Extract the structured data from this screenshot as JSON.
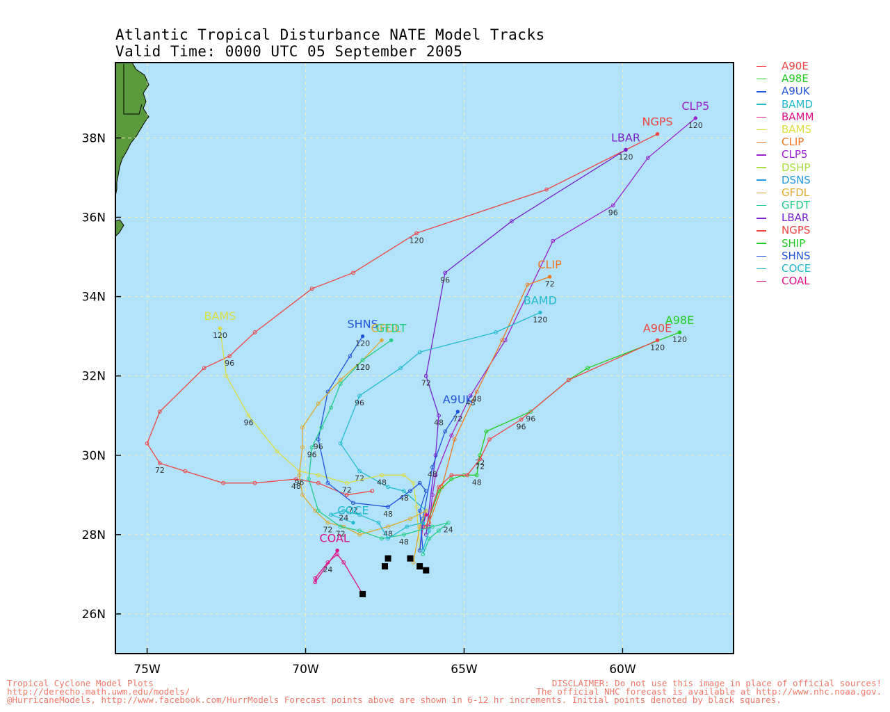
{
  "title": {
    "line1": "Atlantic Tropical Disturbance NATE Model Tracks",
    "line2": "Valid Time: 0000 UTC 05 September 2005"
  },
  "map": {
    "lon_range": [
      -76,
      -56.5
    ],
    "lat_range": [
      25,
      39.9
    ],
    "lon_ticks": [
      -75,
      -70,
      -65,
      -60
    ],
    "lon_tick_labels": [
      "75W",
      "70W",
      "65W",
      "60W"
    ],
    "lat_ticks": [
      26,
      28,
      30,
      32,
      34,
      36,
      38
    ],
    "lat_tick_labels": [
      "26N",
      "28N",
      "30N",
      "32N",
      "34N",
      "36N",
      "38N"
    ],
    "ocean_color": "#b3e2fb",
    "land_color": "#5b9a3c",
    "grid_color": "#f0f0c0"
  },
  "legend": [
    {
      "name": "A90E",
      "color": "#ee4444"
    },
    {
      "name": "A98E",
      "color": "#22cc22"
    },
    {
      "name": "A9UK",
      "color": "#2255dd"
    },
    {
      "name": "BAMD",
      "color": "#22bbcc"
    },
    {
      "name": "BAMM",
      "color": "#dd1188"
    },
    {
      "name": "BAMS",
      "color": "#dddd44"
    },
    {
      "name": "CLIP",
      "color": "#ee7722"
    },
    {
      "name": "CLP5",
      "color": "#9922cc"
    },
    {
      "name": "DSHP",
      "color": "#aadd44"
    },
    {
      "name": "DSNS",
      "color": "#2299dd"
    },
    {
      "name": "GFDL",
      "color": "#ddaa33"
    },
    {
      "name": "GFDT",
      "color": "#22cc88"
    },
    {
      "name": "LBAR",
      "color": "#7722cc"
    },
    {
      "name": "NGPS",
      "color": "#ee4444"
    },
    {
      "name": "SHIP",
      "color": "#22cc22"
    },
    {
      "name": "SHNS",
      "color": "#2255dd"
    },
    {
      "name": "COCE",
      "color": "#22bbcc"
    },
    {
      "name": "COAL",
      "color": "#dd1188"
    }
  ],
  "tracks": [
    {
      "model": "NGPS",
      "color": "#ee4444",
      "label": "NGPS",
      "label_dx": 0,
      "label_dy": -12,
      "points": [
        [
          -67.9,
          29.1
        ],
        [
          -68.7,
          29.0
        ],
        [
          -69.6,
          29.3
        ],
        [
          -70.3,
          29.4
        ],
        [
          -71.6,
          29.3
        ],
        [
          -72.6,
          29.3
        ],
        [
          -73.8,
          29.6
        ],
        [
          -74.6,
          29.8
        ],
        [
          -75.0,
          30.3
        ],
        [
          -74.6,
          31.1
        ],
        [
          -73.2,
          32.2
        ],
        [
          -72.4,
          32.5
        ],
        [
          -71.6,
          33.1
        ],
        [
          -69.8,
          34.2
        ],
        [
          -68.5,
          34.6
        ],
        [
          -66.5,
          35.6
        ],
        [
          -62.4,
          36.7
        ],
        [
          -59.9,
          37.7
        ],
        [
          -58.9,
          38.1
        ]
      ],
      "ticks": [
        {
          "i": 3,
          "t": "48"
        },
        {
          "i": 7,
          "t": "72"
        },
        {
          "i": 11,
          "t": "96"
        },
        {
          "i": 15,
          "t": "120"
        }
      ]
    },
    {
      "model": "CLP5",
      "color": "#9922cc",
      "label": "CLP5",
      "label_dx": 0,
      "label_dy": -12,
      "points": [
        [
          -66.1,
          28.2
        ],
        [
          -66.0,
          29.0
        ],
        [
          -65.9,
          29.5
        ],
        [
          -65.4,
          30.5
        ],
        [
          -64.8,
          31.5
        ],
        [
          -63.7,
          32.9
        ],
        [
          -62.2,
          35.4
        ],
        [
          -60.3,
          36.3
        ],
        [
          -59.2,
          37.5
        ],
        [
          -57.7,
          38.5
        ]
      ],
      "ticks": [
        {
          "i": 4,
          "t": "48"
        },
        {
          "i": 7,
          "t": "96"
        },
        {
          "i": 9,
          "t": "120"
        }
      ]
    },
    {
      "model": "LBAR",
      "color": "#7722cc",
      "label": "LBAR",
      "label_dx": 0,
      "label_dy": -12,
      "points": [
        [
          -66.2,
          28.0
        ],
        [
          -65.9,
          30.0
        ],
        [
          -65.8,
          31.0
        ],
        [
          -66.2,
          32.0
        ],
        [
          -65.6,
          34.6
        ],
        [
          -63.5,
          35.9
        ],
        [
          -59.9,
          37.7
        ]
      ],
      "ticks": [
        {
          "i": 2,
          "t": "48"
        },
        {
          "i": 3,
          "t": "72"
        },
        {
          "i": 4,
          "t": "96"
        },
        {
          "i": 6,
          "t": "120"
        }
      ]
    },
    {
      "model": "CLIP",
      "color": "#ee7722",
      "label": "CLIP",
      "label_dx": 0,
      "label_dy": -12,
      "points": [
        [
          -66.1,
          28.3
        ],
        [
          -65.7,
          29.2
        ],
        [
          -65.3,
          30.4
        ],
        [
          -64.6,
          31.6
        ],
        [
          -63.8,
          32.9
        ],
        [
          -63.0,
          34.3
        ],
        [
          -62.3,
          34.5
        ]
      ],
      "ticks": [
        {
          "i": 3,
          "t": "48"
        },
        {
          "i": 6,
          "t": "72"
        }
      ]
    },
    {
      "model": "BAMD",
      "color": "#22bbcc",
      "label": "BAMD",
      "label_dx": 0,
      "label_dy": -12,
      "points": [
        [
          -66.4,
          27.6
        ],
        [
          -66.3,
          28.3
        ],
        [
          -66.2,
          28.6
        ],
        [
          -66.9,
          29.1
        ],
        [
          -67.4,
          29.2
        ],
        [
          -68.3,
          29.6
        ],
        [
          -68.9,
          30.3
        ],
        [
          -68.3,
          31.5
        ],
        [
          -67.0,
          32.2
        ],
        [
          -66.4,
          32.6
        ],
        [
          -64.0,
          33.1
        ],
        [
          -62.6,
          33.6
        ]
      ],
      "ticks": [
        {
          "i": 3,
          "t": "48"
        },
        {
          "i": 5,
          "t": "72"
        },
        {
          "i": 7,
          "t": "96"
        },
        {
          "i": 11,
          "t": "120"
        }
      ]
    },
    {
      "model": "BAMM",
      "color": "#dd1188",
      "label": "",
      "label_dx": 0,
      "label_dy": 0,
      "points": [
        [
          -66.4,
          27.6
        ],
        [
          -66.3,
          28.2
        ],
        [
          -66.2,
          28.5
        ]
      ],
      "ticks": []
    },
    {
      "model": "BAMS",
      "color": "#dddd44",
      "label": "BAMS",
      "label_dx": 0,
      "label_dy": -12,
      "points": [
        [
          -66.4,
          27.6
        ],
        [
          -66.5,
          28.7
        ],
        [
          -66.6,
          29.3
        ],
        [
          -66.9,
          29.5
        ],
        [
          -67.6,
          29.5
        ],
        [
          -68.7,
          29.3
        ],
        [
          -69.6,
          29.5
        ],
        [
          -70.2,
          29.6
        ],
        [
          -70.9,
          30.1
        ],
        [
          -71.8,
          31.0
        ],
        [
          -72.5,
          32.0
        ],
        [
          -72.7,
          33.2
        ]
      ],
      "ticks": [
        {
          "i": 4,
          "t": "48"
        },
        {
          "i": 5,
          "t": "72"
        },
        {
          "i": 9,
          "t": "96"
        },
        {
          "i": 11,
          "t": "120"
        }
      ]
    },
    {
      "model": "A9UK",
      "color": "#2255dd",
      "label": "A9UK",
      "label_dx": 0,
      "label_dy": -12,
      "points": [
        [
          -66.4,
          27.6
        ],
        [
          -66.3,
          28.4
        ],
        [
          -66.0,
          29.7
        ],
        [
          -65.6,
          30.6
        ],
        [
          -65.2,
          31.1
        ]
      ],
      "ticks": [
        {
          "i": 2,
          "t": "48"
        },
        {
          "i": 4,
          "t": "72"
        }
      ]
    },
    {
      "model": "SHNS",
      "color": "#2255dd",
      "label": "SHNS",
      "label_dx": 0,
      "label_dy": -12,
      "points": [
        [
          -66.3,
          27.6
        ],
        [
          -66.4,
          28.6
        ],
        [
          -66.2,
          29.1
        ],
        [
          -66.4,
          29.3
        ],
        [
          -66.7,
          29.1
        ],
        [
          -67.4,
          28.7
        ],
        [
          -68.5,
          28.8
        ],
        [
          -69.3,
          29.3
        ],
        [
          -69.6,
          30.4
        ],
        [
          -69.3,
          31.6
        ],
        [
          -68.6,
          32.5
        ],
        [
          -68.2,
          33.0
        ]
      ],
      "ticks": [
        {
          "i": 5,
          "t": "48"
        },
        {
          "i": 6,
          "t": "72"
        },
        {
          "i": 8,
          "t": "96"
        },
        {
          "i": 11,
          "t": "120"
        }
      ]
    },
    {
      "model": "GFDL",
      "color": "#ddaa33",
      "label": "GFDL",
      "label_dx": 6,
      "label_dy": -12,
      "points": [
        [
          -66.6,
          27.3
        ],
        [
          -66.4,
          28.2
        ],
        [
          -66.2,
          28.6
        ],
        [
          -66.7,
          28.4
        ],
        [
          -67.4,
          28.2
        ],
        [
          -68.3,
          28.0
        ],
        [
          -68.8,
          28.2
        ],
        [
          -69.3,
          28.3
        ],
        [
          -69.7,
          28.6
        ],
        [
          -70.1,
          29.0
        ],
        [
          -70.2,
          29.5
        ],
        [
          -70.1,
          30.2
        ],
        [
          -70.1,
          30.7
        ],
        [
          -69.6,
          31.3
        ],
        [
          -68.9,
          31.9
        ],
        [
          -68.2,
          32.4
        ],
        [
          -67.6,
          32.9
        ]
      ],
      "ticks": [
        {
          "i": 4,
          "t": "48"
        },
        {
          "i": 7,
          "t": "72"
        },
        {
          "i": 10,
          "t": "96"
        },
        {
          "i": 15,
          "t": "120"
        }
      ]
    },
    {
      "model": "GFDT",
      "color": "#22cc88",
      "label": "GFDT",
      "label_dx": 0,
      "label_dy": -12,
      "points": [
        [
          -66.3,
          27.5
        ],
        [
          -66.1,
          27.9
        ],
        [
          -65.8,
          28.1
        ],
        [
          -65.5,
          28.3
        ],
        [
          -66.0,
          28.2
        ],
        [
          -66.9,
          28.0
        ],
        [
          -67.6,
          27.9
        ],
        [
          -68.3,
          28.1
        ],
        [
          -68.9,
          28.2
        ],
        [
          -69.6,
          28.6
        ],
        [
          -69.9,
          29.4
        ],
        [
          -69.8,
          30.2
        ],
        [
          -69.5,
          30.7
        ],
        [
          -69.2,
          31.2
        ],
        [
          -68.9,
          31.8
        ],
        [
          -68.2,
          32.4
        ],
        [
          -67.3,
          32.9
        ]
      ],
      "ticks": [
        {
          "i": 3,
          "t": "24"
        },
        {
          "i": 5,
          "t": "48"
        },
        {
          "i": 8,
          "t": "72"
        },
        {
          "i": 11,
          "t": "96"
        },
        {
          "i": 15,
          "t": "120"
        }
      ]
    },
    {
      "model": "COCE",
      "color": "#22bbcc",
      "label": "COCE",
      "label_dx": 0,
      "label_dy": -12,
      "points": [
        [
          -66.3,
          27.6
        ],
        [
          -66.1,
          28.1
        ],
        [
          -66.3,
          28.3
        ],
        [
          -66.8,
          28.2
        ],
        [
          -67.4,
          27.9
        ],
        [
          -67.7,
          28.3
        ],
        [
          -68.3,
          28.5
        ],
        [
          -68.8,
          28.6
        ],
        [
          -69.2,
          28.5
        ],
        [
          -68.5,
          28.3
        ]
      ],
      "ticks": [
        {
          "i": 7,
          "t": "24"
        }
      ]
    },
    {
      "model": "COAL",
      "color": "#dd1188",
      "label": "COAL",
      "label_dx": -4,
      "label_dy": -12,
      "points": [
        [
          -68.2,
          26.5
        ],
        [
          -68.8,
          27.3
        ],
        [
          -69.0,
          27.5
        ],
        [
          -69.3,
          27.3
        ],
        [
          -69.7,
          26.9
        ],
        [
          -69.7,
          26.8
        ],
        [
          -69.0,
          27.6
        ]
      ],
      "ticks": [
        {
          "i": 3,
          "t": "24"
        }
      ]
    },
    {
      "model": "A98E",
      "color": "#22cc22",
      "label": "A98E",
      "label_dx": 0,
      "label_dy": -12,
      "points": [
        [
          -66.2,
          28.2
        ],
        [
          -65.8,
          29.1
        ],
        [
          -65.4,
          29.4
        ],
        [
          -65.0,
          29.5
        ],
        [
          -64.6,
          29.5
        ],
        [
          -64.5,
          30.0
        ],
        [
          -64.3,
          30.6
        ],
        [
          -62.9,
          31.1
        ],
        [
          -61.7,
          31.9
        ],
        [
          -61.1,
          32.2
        ],
        [
          -58.2,
          33.1
        ]
      ],
      "ticks": [
        {
          "i": 4,
          "t": "48"
        },
        {
          "i": 5,
          "t": "72"
        },
        {
          "i": 7,
          "t": "96"
        },
        {
          "i": 10,
          "t": "120"
        }
      ]
    },
    {
      "model": "A90E",
      "color": "#ee4444",
      "label": "A90E",
      "label_dx": 0,
      "label_dy": -12,
      "points": [
        [
          -66.2,
          28.2
        ],
        [
          -65.8,
          29.2
        ],
        [
          -65.4,
          29.5
        ],
        [
          -64.9,
          29.5
        ],
        [
          -64.5,
          29.9
        ],
        [
          -64.2,
          30.4
        ],
        [
          -63.2,
          30.9
        ],
        [
          -61.7,
          31.9
        ],
        [
          -58.9,
          32.9
        ]
      ],
      "ticks": [
        {
          "i": 4,
          "t": "72"
        },
        {
          "i": 6,
          "t": "96"
        },
        {
          "i": 8,
          "t": "120"
        }
      ]
    }
  ],
  "start_points": [
    [
      -68.2,
      26.5
    ],
    [
      -67.5,
      27.2
    ],
    [
      -67.4,
      27.4
    ],
    [
      -66.7,
      27.4
    ],
    [
      -66.4,
      27.2
    ],
    [
      -66.2,
      27.1
    ]
  ],
  "footer": {
    "left_line1": "Tropical Cyclone Model Plots",
    "left_line2": "http://derecho.math.uwm.edu/models/",
    "right_line1": "DISCLAIMER: Do not use this image in place of official sources!",
    "right_line2": "The official NHC forecast is available at http://www.nhc.noaa.gov.",
    "bottom": "@HurricaneModels, http://www.facebook.com/HurrModels  Forecast points above are shown in 6-12 hr increments. Initial points denoted by black squares."
  }
}
